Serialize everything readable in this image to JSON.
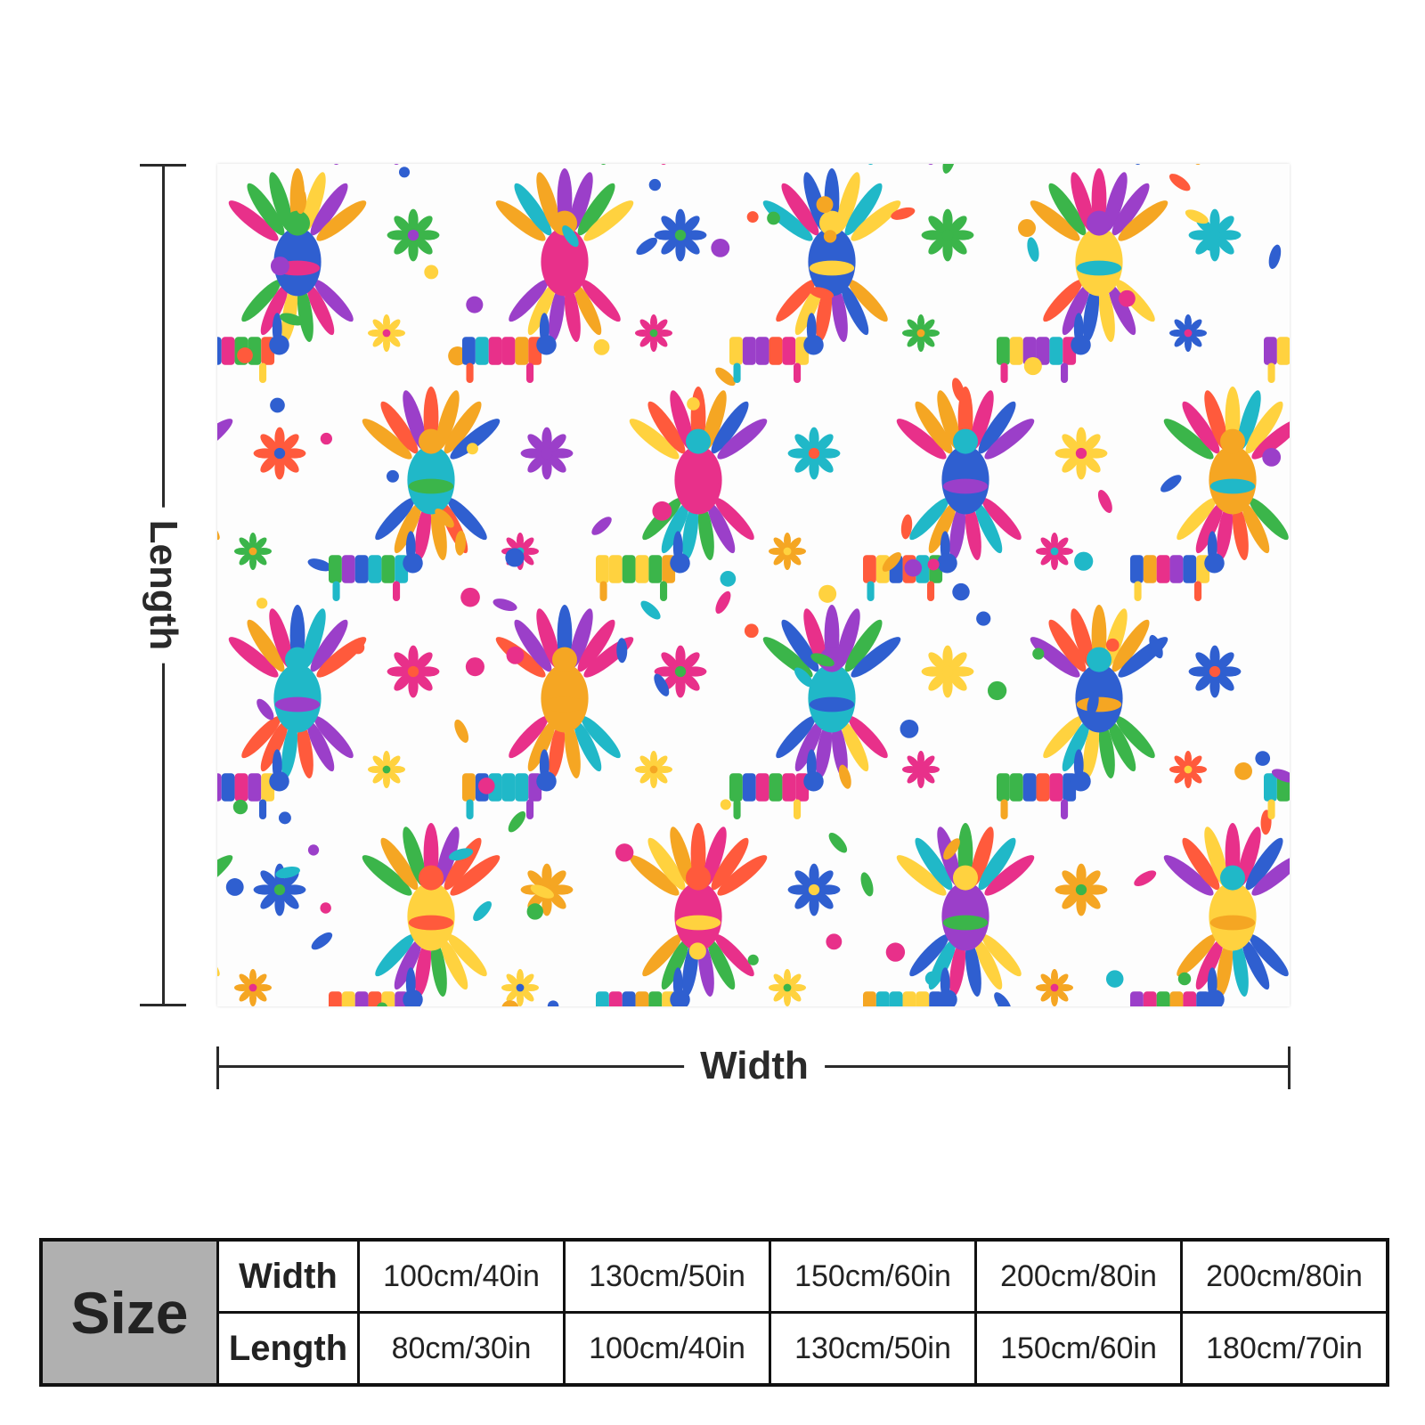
{
  "dimensions": {
    "length_label": "Length",
    "width_label": "Width"
  },
  "size_chart": {
    "header": "Size",
    "width_label": "Width",
    "length_label": "Length",
    "widths": [
      "100cm/40in",
      "130cm/50in",
      "150cm/60in",
      "200cm/80in",
      "200cm/80in"
    ],
    "lengths": [
      "80cm/30in",
      "100cm/40in",
      "130cm/50in",
      "150cm/60in",
      "180cm/70in"
    ]
  },
  "colors": {
    "pattern": [
      "#e8308a",
      "#f5a623",
      "#2f5fd0",
      "#3bb54a",
      "#ff5a3c",
      "#9b3fc9",
      "#ffd23f",
      "#20b8c8"
    ],
    "size_header_bg": "#b0b0b0"
  }
}
